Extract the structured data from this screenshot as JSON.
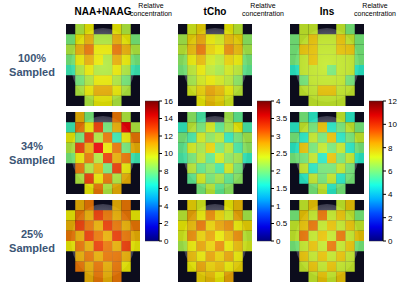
{
  "chart_data": [
    {
      "type": "heatmap",
      "title": "NAA+NAAG",
      "ylabel": "100% Sampled",
      "tick_labels": false,
      "cells": [
        [
          null,
          9,
          10,
          null,
          null,
          10,
          9,
          null
        ],
        [
          8,
          10,
          11,
          9,
          9,
          11,
          10,
          8
        ],
        [
          9,
          11,
          12,
          10,
          10,
          12,
          11,
          9
        ],
        [
          8,
          10,
          11,
          10,
          9,
          11,
          10,
          8
        ],
        [
          7,
          9,
          10,
          9,
          9,
          10,
          9,
          7
        ],
        [
          null,
          8,
          9,
          10,
          10,
          9,
          8,
          null
        ],
        [
          null,
          9,
          10,
          11,
          11,
          10,
          9,
          null
        ],
        [
          null,
          null,
          9,
          10,
          10,
          9,
          null,
          null
        ]
      ]
    },
    {
      "type": "heatmap",
      "title": "tCho",
      "tick_labels": false,
      "cells": [
        [
          null,
          2.4,
          2.6,
          null,
          null,
          2.5,
          2.3,
          null
        ],
        [
          2.2,
          2.6,
          2.8,
          2.5,
          2.4,
          2.7,
          2.6,
          2.1
        ],
        [
          2.3,
          2.7,
          3.0,
          2.6,
          2.5,
          2.9,
          2.7,
          2.2
        ],
        [
          2.1,
          2.5,
          2.7,
          2.4,
          2.3,
          2.6,
          2.5,
          2.0
        ],
        [
          2.0,
          2.3,
          2.5,
          2.3,
          2.2,
          2.4,
          2.3,
          1.9
        ],
        [
          null,
          2.2,
          2.4,
          2.5,
          2.4,
          2.3,
          2.1,
          null
        ],
        [
          null,
          2.4,
          2.6,
          2.8,
          2.7,
          2.5,
          2.3,
          null
        ],
        [
          null,
          null,
          2.5,
          2.7,
          2.6,
          2.4,
          null,
          null
        ]
      ]
    },
    {
      "type": "heatmap",
      "title": "Ins",
      "tick_labels": false,
      "cells": [
        [
          null,
          7,
          7,
          null,
          null,
          7,
          6,
          null
        ],
        [
          6,
          7,
          8,
          7,
          7,
          8,
          7,
          6
        ],
        [
          6,
          8,
          8,
          7,
          7,
          8,
          8,
          6
        ],
        [
          6,
          7,
          8,
          7,
          7,
          7,
          7,
          6
        ],
        [
          5,
          7,
          7,
          7,
          6,
          7,
          7,
          5
        ],
        [
          null,
          6,
          7,
          7,
          7,
          7,
          6,
          null
        ],
        [
          null,
          7,
          7,
          8,
          8,
          7,
          7,
          null
        ],
        [
          null,
          null,
          7,
          7,
          7,
          7,
          null,
          null
        ]
      ]
    },
    {
      "type": "heatmap",
      "ylabel": "34% Sampled",
      "tick_labels": false,
      "colorbar": {
        "label": "Relative concentration",
        "range": [
          0,
          16
        ],
        "ticks": [
          0,
          2,
          4,
          6,
          8,
          10,
          12,
          14,
          16
        ]
      },
      "cells": [
        [
          null,
          11,
          8,
          null,
          null,
          12,
          9,
          null
        ],
        [
          7,
          12,
          10,
          13,
          8,
          11,
          14,
          9
        ],
        [
          10,
          8,
          13,
          9,
          12,
          7,
          10,
          12
        ],
        [
          9,
          13,
          11,
          14,
          10,
          12,
          8,
          11
        ],
        [
          8,
          10,
          12,
          9,
          13,
          11,
          12,
          7
        ],
        [
          null,
          12,
          9,
          11,
          8,
          13,
          10,
          null
        ],
        [
          null,
          9,
          13,
          10,
          12,
          9,
          11,
          null
        ],
        [
          null,
          null,
          10,
          12,
          9,
          11,
          null,
          null
        ]
      ]
    },
    {
      "type": "heatmap",
      "tick_labels": false,
      "colorbar": {
        "label": "Relative concentration",
        "range": [
          0,
          4
        ],
        "ticks": [
          0,
          0.5,
          1,
          1.5,
          2,
          2.5,
          3,
          3.5,
          4
        ]
      },
      "cells": [
        [
          null,
          2.1,
          1.8,
          null,
          null,
          2.2,
          1.9,
          null
        ],
        [
          1.7,
          2.3,
          2.0,
          2.4,
          1.9,
          2.2,
          2.5,
          1.8
        ],
        [
          2.0,
          1.8,
          2.4,
          2.1,
          2.3,
          1.7,
          2.0,
          2.2
        ],
        [
          1.9,
          2.4,
          2.2,
          2.6,
          2.0,
          2.3,
          1.8,
          2.1
        ],
        [
          1.8,
          2.0,
          2.3,
          1.9,
          2.4,
          2.1,
          2.2,
          1.7
        ],
        [
          null,
          2.3,
          1.9,
          2.1,
          1.8,
          2.4,
          2.0,
          null
        ],
        [
          null,
          1.9,
          2.4,
          2.0,
          2.2,
          1.9,
          2.1,
          null
        ],
        [
          null,
          null,
          2.0,
          2.3,
          1.9,
          2.1,
          null,
          null
        ]
      ]
    },
    {
      "type": "heatmap",
      "tick_labels": false,
      "colorbar": {
        "label": "Relative concentration",
        "range": [
          0,
          12
        ],
        "ticks": [
          0,
          2,
          4,
          6,
          8,
          10,
          12
        ]
      },
      "cells": [
        [
          null,
          6,
          5,
          null,
          null,
          7,
          5,
          null
        ],
        [
          5,
          7,
          6,
          8,
          5,
          6,
          7,
          6
        ],
        [
          6,
          5,
          7,
          6,
          8,
          5,
          6,
          7
        ],
        [
          5,
          8,
          6,
          7,
          6,
          7,
          5,
          6
        ],
        [
          6,
          6,
          7,
          5,
          8,
          6,
          7,
          5
        ],
        [
          null,
          7,
          5,
          6,
          6,
          7,
          6,
          null
        ],
        [
          null,
          5,
          7,
          6,
          7,
          5,
          6,
          null
        ],
        [
          null,
          null,
          6,
          7,
          5,
          6,
          null,
          null
        ]
      ]
    },
    {
      "type": "heatmap",
      "ylabel": "25% Sampled",
      "tick_labels": false,
      "cells": [
        [
          null,
          11,
          12,
          null,
          null,
          11,
          12,
          null
        ],
        [
          10,
          12,
          11,
          13,
          12,
          11,
          12,
          10
        ],
        [
          11,
          13,
          12,
          11,
          13,
          12,
          11,
          12
        ],
        [
          12,
          11,
          13,
          12,
          11,
          13,
          12,
          11
        ],
        [
          10,
          12,
          11,
          13,
          12,
          11,
          13,
          10
        ],
        [
          null,
          11,
          12,
          11,
          12,
          12,
          11,
          null
        ],
        [
          null,
          12,
          11,
          12,
          11,
          12,
          10,
          null
        ],
        [
          null,
          null,
          11,
          12,
          11,
          12,
          null,
          null
        ]
      ]
    },
    {
      "type": "heatmap",
      "tick_labels": false,
      "cells": [
        [
          null,
          2.6,
          2.4,
          null,
          null,
          2.5,
          2.7,
          null
        ],
        [
          2.3,
          2.8,
          2.5,
          2.9,
          2.6,
          2.4,
          2.8,
          2.2
        ],
        [
          2.5,
          2.7,
          3.0,
          2.6,
          2.8,
          2.9,
          2.5,
          2.6
        ],
        [
          2.4,
          2.9,
          2.6,
          2.8,
          2.5,
          2.7,
          2.9,
          2.3
        ],
        [
          2.2,
          2.5,
          2.8,
          2.6,
          2.9,
          2.5,
          2.7,
          2.4
        ],
        [
          null,
          2.7,
          2.5,
          2.8,
          2.6,
          2.8,
          2.5,
          null
        ],
        [
          null,
          2.5,
          2.8,
          2.6,
          2.7,
          2.5,
          2.6,
          null
        ],
        [
          null,
          null,
          2.6,
          2.7,
          2.5,
          2.8,
          null,
          null
        ]
      ]
    },
    {
      "type": "heatmap",
      "tick_labels": false,
      "cells": [
        [
          null,
          7,
          8,
          null,
          null,
          7,
          8,
          null
        ],
        [
          6,
          8,
          7,
          9,
          7,
          8,
          7,
          6
        ],
        [
          7,
          8,
          9,
          7,
          8,
          7,
          8,
          7
        ],
        [
          7,
          9,
          7,
          8,
          7,
          9,
          7,
          8
        ],
        [
          6,
          7,
          8,
          7,
          9,
          7,
          8,
          6
        ],
        [
          null,
          8,
          7,
          8,
          7,
          8,
          7,
          null
        ],
        [
          null,
          7,
          8,
          7,
          8,
          7,
          7,
          null
        ],
        [
          null,
          null,
          7,
          8,
          7,
          8,
          null,
          null
        ]
      ]
    }
  ]
}
